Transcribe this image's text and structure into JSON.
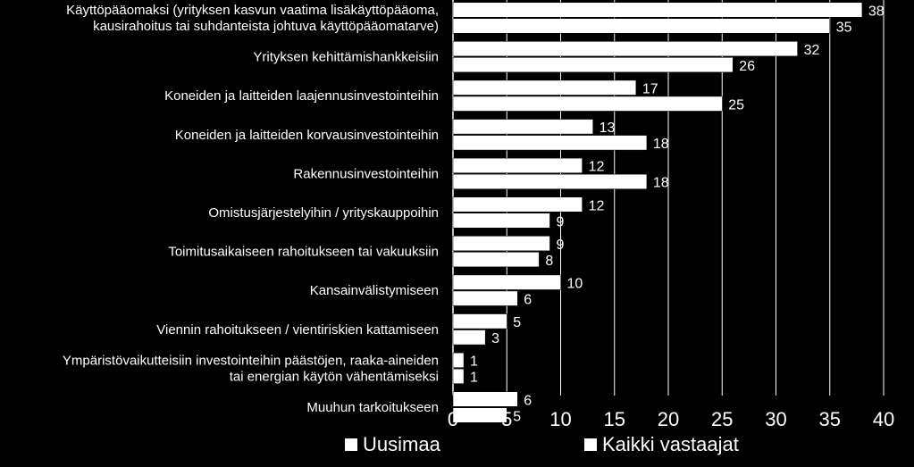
{
  "chart_data": {
    "type": "bar",
    "orientation": "horizontal",
    "categories": [
      [
        "Käyttöpääomaksi (yrityksen kasvun vaatima lisäkäyttöpääoma,",
        "kausirahoitus tai suhdanteista johtuva käyttöpääomatarve)"
      ],
      [
        "Yrityksen kehittämishankkeisiin"
      ],
      [
        "Koneiden ja laitteiden laajennusinvestointeihin"
      ],
      [
        "Koneiden ja laitteiden korvausinvestointeihin"
      ],
      [
        "Rakennusinvestointeihin"
      ],
      [
        "Omistusjärjestelyihin / yrityskauppoihin"
      ],
      [
        "Toimitusaikaiseen rahoitukseen tai vakuuksiin"
      ],
      [
        "Kansainvälistymiseen"
      ],
      [
        "Viennin rahoitukseen / vientiriskien kattamiseen"
      ],
      [
        "Ympäristövaikutteisiin investointeihin päästöjen, raaka-aineiden",
        "tai energian käytön vähentämiseksi"
      ],
      [
        "Muuhun tarkoitukseen"
      ]
    ],
    "series": [
      {
        "name": "Uusimaa",
        "values": [
          38,
          32,
          17,
          13,
          12,
          12,
          9,
          10,
          5,
          1,
          6
        ],
        "color": "#ffffff"
      },
      {
        "name": "Kaikki vastaajat",
        "values": [
          35,
          26,
          25,
          18,
          18,
          9,
          8,
          6,
          3,
          1,
          5
        ],
        "color": "#ffffff"
      }
    ],
    "xlim": [
      0,
      40
    ],
    "xticks": [
      "0",
      "5",
      "10",
      "15",
      "20",
      "25",
      "30",
      "35",
      "40"
    ],
    "grid": true,
    "legend_position": "bottom"
  }
}
